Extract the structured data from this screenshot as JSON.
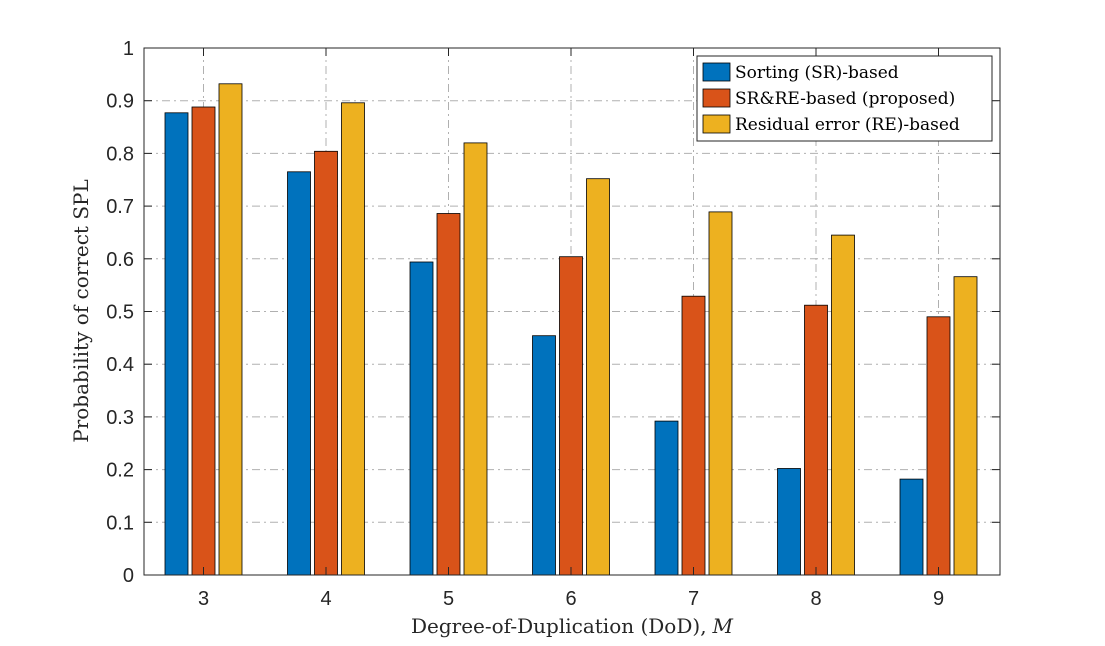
{
  "chart_data": {
    "type": "bar",
    "title": "",
    "xlabel": "Degree-of-Duplication (DoD),",
    "xlabel_symbol": "M",
    "ylabel": "Probability of correct SPL",
    "categories": [
      "3",
      "4",
      "5",
      "6",
      "7",
      "8",
      "9"
    ],
    "ylim": [
      0,
      1
    ],
    "yticks": [
      "0",
      "0.1",
      "0.2",
      "0.3",
      "0.4",
      "0.5",
      "0.6",
      "0.7",
      "0.8",
      "0.9",
      "1"
    ],
    "grid": true,
    "legend_position": "top-right",
    "series": [
      {
        "name": "Sorting (SR)-based",
        "color": "#0072BD",
        "values": [
          0.877,
          0.765,
          0.594,
          0.454,
          0.292,
          0.202,
          0.182
        ]
      },
      {
        "name": "SR&RE-based (proposed)",
        "color": "#D95319",
        "values": [
          0.888,
          0.804,
          0.686,
          0.604,
          0.529,
          0.512,
          0.49
        ]
      },
      {
        "name": "Residual error (RE)-based",
        "color": "#EDB120",
        "values": [
          0.932,
          0.896,
          0.82,
          0.752,
          0.689,
          0.645,
          0.566
        ]
      }
    ]
  }
}
